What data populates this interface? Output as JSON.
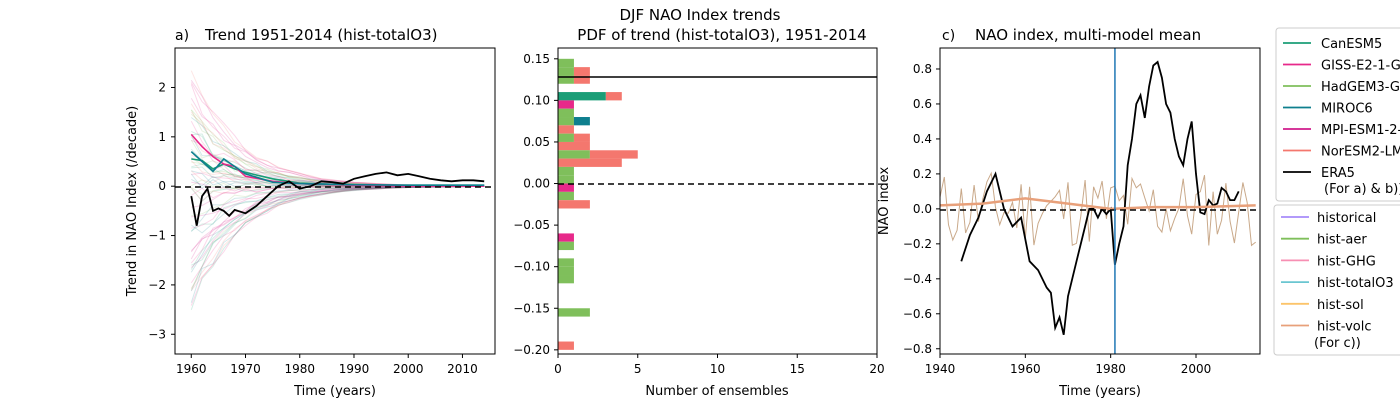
{
  "suptitle": "DJF NAO Index trends",
  "panels": {
    "a": {
      "label": "a)",
      "title": "Trend 1951-2014 (hist-totalO3)",
      "xlabel": "Time (years)",
      "ylabel": "Trend in NAO Index (/decade)",
      "xticks": [
        "1960",
        "1970",
        "1980",
        "1990",
        "2000",
        "2010"
      ],
      "yticks": [
        "2",
        "1",
        "0",
        "−1",
        "−2",
        "−3"
      ]
    },
    "b": {
      "label": "b)",
      "title": "PDF of trend (hist-totalO3), 1951-2014",
      "xlabel": "Number of ensembles",
      "xticks": [
        "0",
        "5",
        "10",
        "15",
        "20"
      ],
      "yticks": [
        "0.15",
        "0.10",
        "0.05",
        "0.00",
        "−0.05",
        "−0.10",
        "−0.15",
        "−0.20"
      ]
    },
    "c": {
      "label": "c)",
      "title": "NAO index, multi-model mean",
      "xlabel": "Time (years)",
      "ylabel": "NAO index",
      "xticks": [
        "1940",
        "1960",
        "1980",
        "2000"
      ],
      "yticks": [
        "0.8",
        "0.6",
        "0.4",
        "0.2",
        "0.0",
        "−0.2",
        "−0.4",
        "−0.6",
        "−0.8"
      ]
    }
  },
  "legend1": {
    "items": [
      "CanESM5",
      "GISS-E2-1-G",
      "HadGEM3-GC31-LL",
      "MIROC6",
      "MPI-ESM1-2-LR",
      "NorESM2-LM",
      "ERA5"
    ],
    "note": "(For a) & b))"
  },
  "legend2": {
    "items": [
      "historical",
      "hist-aer",
      "hist-GHG",
      "hist-totalO3",
      "hist-sol",
      "hist-volc"
    ],
    "note": "(For c))"
  },
  "colors": {
    "CanESM5": "#1b9e77",
    "GISS-E2-1-G": "#e7298a",
    "HadGEM3-GC31-LL": "#7fbf5b",
    "MIROC6": "#0e7f8e",
    "MPI-ESM1-2-LR": "#d01c8b",
    "NorESM2-LM": "#f4776e",
    "ERA5": "#000000",
    "historical": "#a78bfa",
    "hist-aer": "#7fbf5b",
    "hist-GHG": "#f78fb3",
    "hist-totalO3": "#6ac6d1",
    "hist-sol": "#fcc46a",
    "hist-volc": "#e8a07a",
    "vline": "#1f77b4"
  },
  "chart_data": [
    {
      "type": "line",
      "panel": "a",
      "title": "Trend 1951-2014 (hist-totalO3)",
      "xlabel": "Time (years)",
      "ylabel": "Trend in NAO Index (/decade)",
      "xlim": [
        1957,
        2016
      ],
      "ylim": [
        -3.4,
        2.8
      ],
      "hline": 0,
      "series": [
        {
          "name": "CanESM5",
          "x": [
            1960,
            1962,
            1964,
            1966,
            1968,
            1970,
            1975,
            1980,
            1990,
            2000,
            2014
          ],
          "values": [
            0.55,
            0.52,
            0.35,
            0.45,
            0.35,
            0.28,
            0.15,
            0.06,
            0.02,
            0.02,
            0.02
          ]
        },
        {
          "name": "GISS-E2-1-G",
          "x": [
            1960,
            1962,
            1964,
            1966,
            1968,
            1970,
            1975,
            1980,
            1990,
            2000,
            2014
          ],
          "values": [
            1.05,
            0.8,
            0.6,
            0.45,
            0.4,
            0.2,
            0.1,
            0.05,
            0.02,
            0.0,
            0.0
          ]
        },
        {
          "name": "MIROC6",
          "x": [
            1960,
            1962,
            1964,
            1966,
            1968,
            1970,
            1975,
            1980,
            1990,
            2000,
            2014
          ],
          "values": [
            0.7,
            0.5,
            0.3,
            0.55,
            0.4,
            0.25,
            0.08,
            0.05,
            0.03,
            0.02,
            0.02
          ]
        },
        {
          "name": "ERA5",
          "x": [
            1960,
            1961,
            1962,
            1963,
            1964,
            1965,
            1966,
            1967,
            1968,
            1970,
            1972,
            1974,
            1976,
            1978,
            1980,
            1982,
            1984,
            1986,
            1988,
            1990,
            1992,
            1994,
            1996,
            1998,
            2000,
            2002,
            2004,
            2006,
            2008,
            2010,
            2012,
            2014
          ],
          "values": [
            -0.2,
            -0.8,
            -0.2,
            -0.05,
            -0.5,
            -0.45,
            -0.5,
            -0.6,
            -0.48,
            -0.55,
            -0.4,
            -0.2,
            0.0,
            0.1,
            -0.05,
            0.0,
            0.1,
            0.08,
            0.05,
            0.15,
            0.2,
            0.25,
            0.28,
            0.22,
            0.25,
            0.2,
            0.15,
            0.12,
            0.1,
            0.12,
            0.12,
            0.1
          ]
        }
      ]
    },
    {
      "type": "bar",
      "panel": "b",
      "title": "PDF of trend (hist-totalO3), 1951-2014",
      "xlabel": "Number of ensembles",
      "xlim": [
        0,
        20
      ],
      "ylim": [
        -0.205,
        0.163
      ],
      "orientation": "horizontal-stacked",
      "hline_dashed": 0,
      "hline_solid": 0.127,
      "bin_centers": [
        0.145,
        0.135,
        0.125,
        0.105,
        0.095,
        0.085,
        0.075,
        0.065,
        0.055,
        0.045,
        0.035,
        0.025,
        0.015,
        0.005,
        -0.005,
        -0.015,
        -0.025,
        -0.035,
        -0.045,
        -0.055,
        -0.065,
        -0.075,
        -0.085,
        -0.095,
        -0.105,
        -0.115,
        -0.125,
        -0.155,
        -0.195
      ],
      "series": [
        {
          "name": "HadGEM3-GC31-LL",
          "values": [
            1,
            1,
            1,
            0,
            0,
            1,
            1,
            0,
            1,
            0,
            2,
            0,
            1,
            1,
            0,
            1,
            0,
            0,
            0,
            0,
            0,
            1,
            0,
            1,
            1,
            1,
            0,
            2,
            0
          ]
        },
        {
          "name": "CanESM5",
          "values": [
            0,
            0,
            0,
            3,
            0,
            0,
            0,
            0,
            0,
            0,
            0,
            0,
            0,
            0,
            0,
            0,
            0,
            0,
            0,
            0,
            0,
            0,
            0,
            0,
            0,
            0,
            0,
            0,
            0
          ]
        },
        {
          "name": "GISS-E2-1-G",
          "values": [
            0,
            0,
            0,
            0,
            1,
            0,
            0,
            0,
            0,
            0,
            0,
            0,
            0,
            0,
            1,
            0,
            0,
            0,
            0,
            0,
            1,
            0,
            0,
            0,
            0,
            0,
            0,
            0,
            0
          ]
        },
        {
          "name": "MIROC6",
          "values": [
            0,
            0,
            0,
            0,
            0,
            0,
            1,
            0,
            0,
            0,
            0,
            0,
            0,
            0,
            0,
            0,
            0,
            0,
            0,
            0,
            0,
            0,
            0,
            0,
            0,
            0,
            0,
            0,
            0
          ]
        },
        {
          "name": "MPI-ESM1-2-LR",
          "values": [
            0,
            0,
            0,
            0,
            0,
            0,
            0,
            0,
            0,
            0,
            0,
            0,
            0,
            0,
            0,
            0,
            0,
            0,
            0,
            0,
            0,
            0,
            0,
            0,
            0,
            0,
            0,
            0,
            0
          ]
        },
        {
          "name": "NorESM2-LM",
          "values": [
            0,
            1,
            1,
            1,
            0,
            0,
            0,
            1,
            1,
            2,
            3,
            4,
            0,
            0,
            0,
            0,
            2,
            0,
            0,
            0,
            0,
            0,
            0,
            0,
            0,
            0,
            0,
            0,
            1
          ]
        }
      ]
    },
    {
      "type": "line",
      "panel": "c",
      "title": "NAO index, multi-model mean",
      "xlabel": "Time (years)",
      "ylabel": "NAO index",
      "xlim": [
        1940,
        2015
      ],
      "ylim": [
        -0.83,
        0.92
      ],
      "hline": 0,
      "vline": 1981,
      "series": [
        {
          "name": "ERA5",
          "x": [
            1945,
            1947,
            1949,
            1951,
            1953,
            1955,
            1957,
            1959,
            1961,
            1963,
            1965,
            1966,
            1967,
            1968,
            1969,
            1970,
            1972,
            1974,
            1975,
            1976,
            1977,
            1978,
            1979,
            1980,
            1981,
            1982,
            1983,
            1984,
            1985,
            1986,
            1987,
            1988,
            1989,
            1990,
            1991,
            1992,
            1993,
            1994,
            1995,
            1996,
            1997,
            1998,
            1999,
            2000,
            2001,
            2002,
            2003,
            2004,
            2005,
            2006,
            2007,
            2008,
            2009,
            2010
          ],
          "values": [
            -0.3,
            -0.15,
            -0.05,
            0.1,
            0.2,
            0.0,
            -0.1,
            -0.05,
            -0.3,
            -0.35,
            -0.45,
            -0.48,
            -0.68,
            -0.62,
            -0.72,
            -0.5,
            -0.3,
            -0.1,
            0.0,
            0.0,
            -0.05,
            0.0,
            -0.03,
            0.0,
            -0.32,
            -0.2,
            -0.1,
            0.25,
            0.4,
            0.6,
            0.65,
            0.52,
            0.7,
            0.82,
            0.84,
            0.75,
            0.6,
            0.55,
            0.4,
            0.3,
            0.25,
            0.4,
            0.5,
            0.2,
            -0.02,
            -0.03,
            0.05,
            0.02,
            0.03,
            0.12,
            0.1,
            0.05,
            0.05,
            0.1
          ]
        },
        {
          "name": "hist-volc",
          "x": [
            1940,
            1950,
            1960,
            1970,
            1980,
            1990,
            2000,
            2014
          ],
          "values": [
            0.02,
            0.03,
            0.06,
            0.03,
            0.0,
            0.01,
            0.01,
            0.02
          ]
        }
      ]
    }
  ]
}
